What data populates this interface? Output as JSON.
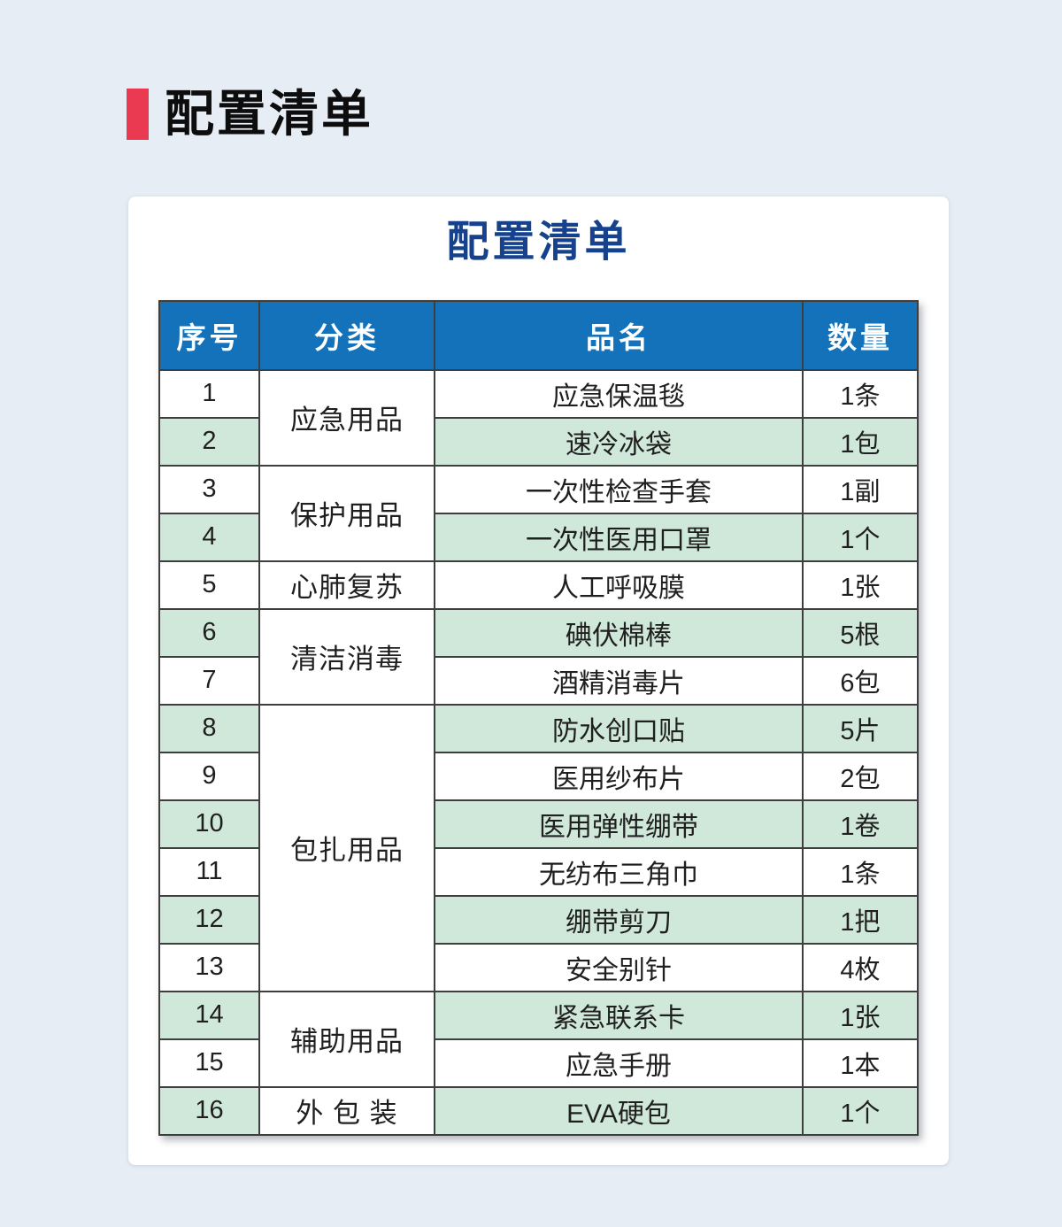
{
  "page": {
    "title": "配置清单"
  },
  "card": {
    "table_title": "配置清单"
  },
  "colors": {
    "page_background": "#E6EDF4",
    "accent_red": "#E93A52",
    "title_navy": "#16418C",
    "header_blue": "#1372B9",
    "stripe_green": "#CFE8D9",
    "grid_line": "#3E3E3E"
  },
  "table": {
    "headers": [
      "序号",
      "分类",
      "品名",
      "数量"
    ],
    "groups": [
      {
        "category": "应急用品",
        "items": [
          {
            "no": "1",
            "name": "应急保温毯",
            "qty": "1条"
          },
          {
            "no": "2",
            "name": "速冷冰袋",
            "qty": "1包"
          }
        ]
      },
      {
        "category": "保护用品",
        "items": [
          {
            "no": "3",
            "name": "一次性检查手套",
            "qty": "1副"
          },
          {
            "no": "4",
            "name": "一次性医用口罩",
            "qty": "1个"
          }
        ]
      },
      {
        "category": "心肺复苏",
        "items": [
          {
            "no": "5",
            "name": "人工呼吸膜",
            "qty": "1张"
          }
        ]
      },
      {
        "category": "清洁消毒",
        "items": [
          {
            "no": "6",
            "name": "碘伏棉棒",
            "qty": "5根"
          },
          {
            "no": "7",
            "name": "酒精消毒片",
            "qty": "6包"
          }
        ]
      },
      {
        "category": "包扎用品",
        "items": [
          {
            "no": "8",
            "name": "防水创口贴",
            "qty": "5片"
          },
          {
            "no": "9",
            "name": "医用纱布片",
            "qty": "2包"
          },
          {
            "no": "10",
            "name": "医用弹性绷带",
            "qty": "1卷"
          },
          {
            "no": "11",
            "name": "无纺布三角巾",
            "qty": "1条"
          },
          {
            "no": "12",
            "name": "绷带剪刀",
            "qty": "1把"
          },
          {
            "no": "13",
            "name": "安全别针",
            "qty": "4枚"
          }
        ]
      },
      {
        "category": "辅助用品",
        "items": [
          {
            "no": "14",
            "name": "紧急联系卡",
            "qty": "1张"
          },
          {
            "no": "15",
            "name": "应急手册",
            "qty": "1本"
          }
        ]
      },
      {
        "category": "外 包 装",
        "items": [
          {
            "no": "16",
            "name": "EVA硬包",
            "qty": "1个"
          }
        ]
      }
    ]
  }
}
